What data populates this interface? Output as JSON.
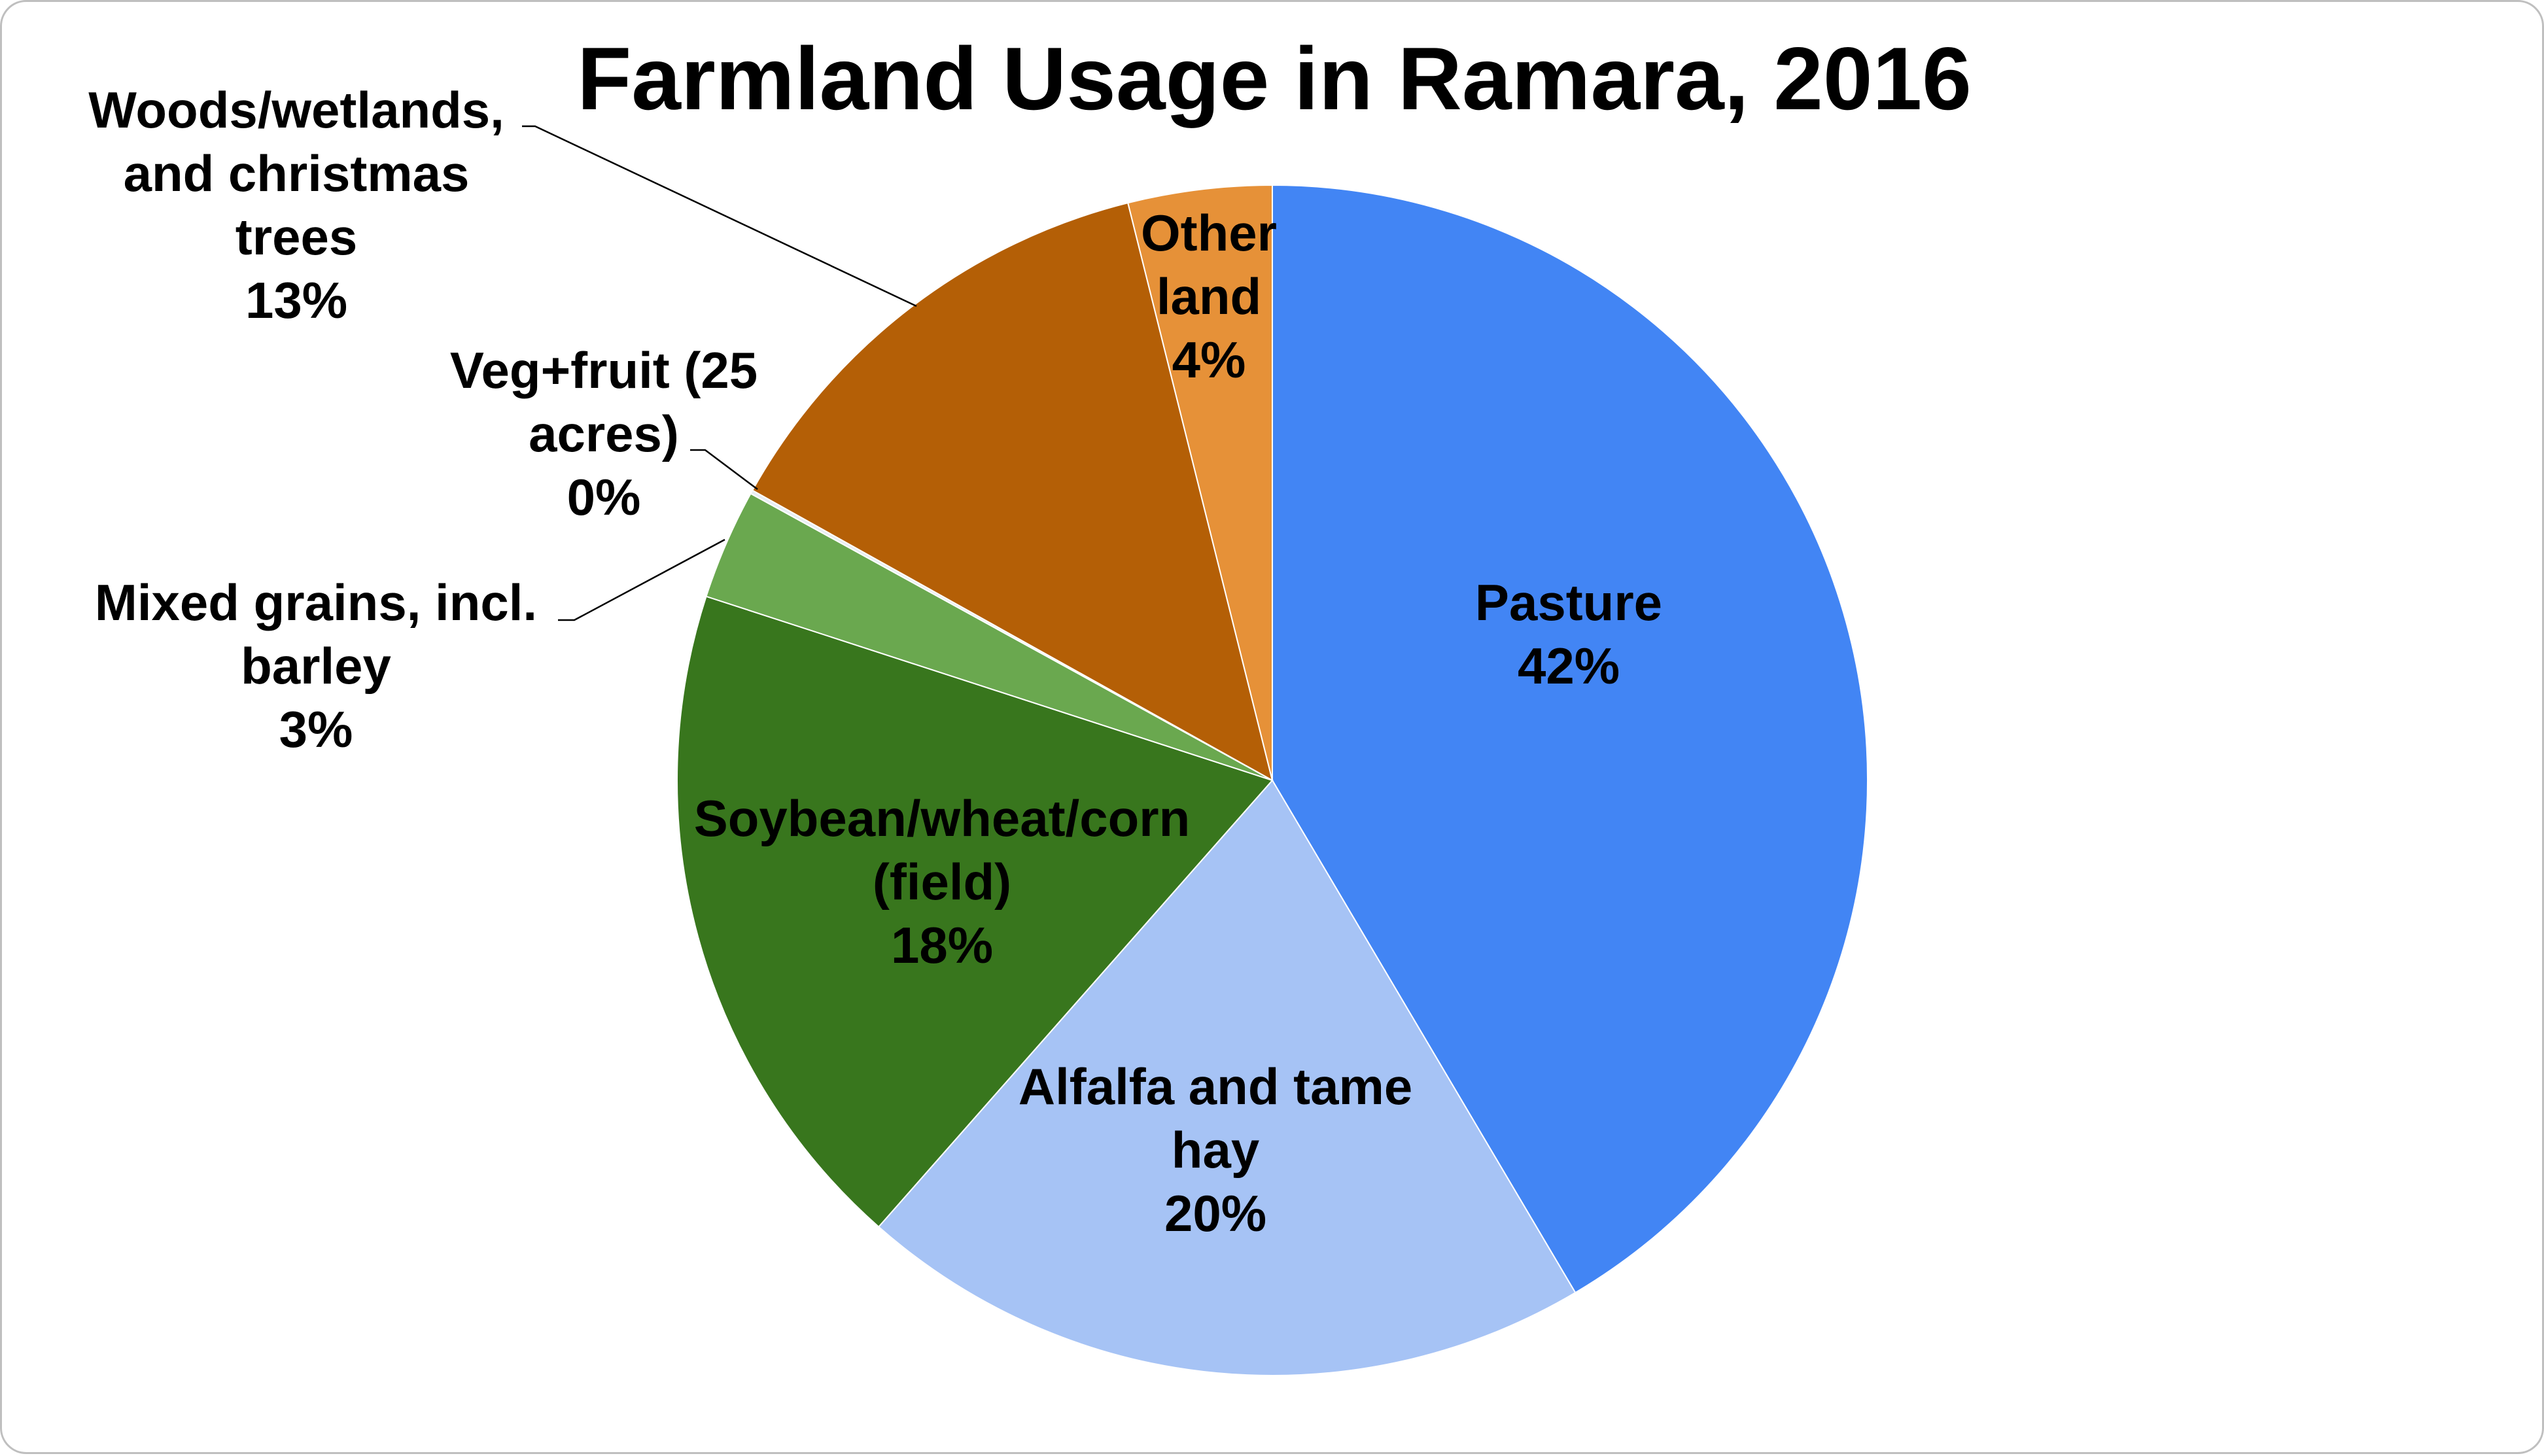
{
  "chart_data": {
    "type": "pie",
    "title": "Farmland Usage in Ramara, 2016",
    "slices": [
      {
        "label": [
          "Pasture"
        ],
        "percent": "42%",
        "value": 41.5,
        "color": "#4285f4"
      },
      {
        "label": [
          "Alfalfa and tame",
          "hay"
        ],
        "percent": "20%",
        "value": 20.0,
        "color": "#a6c3f5"
      },
      {
        "label": [
          "Soybean/wheat/corn",
          "(field)"
        ],
        "percent": "18%",
        "value": 18.5,
        "color": "#38761d"
      },
      {
        "label": [
          "Mixed grains, incl.",
          "barley"
        ],
        "percent": "3%",
        "value": 3.0,
        "color": "#6aa84f"
      },
      {
        "label": [
          "Veg+fruit (25",
          "acres)"
        ],
        "percent": "0%",
        "value": 0.1,
        "color": "#e8eef4"
      },
      {
        "label": [
          "Woods/wetlands,",
          "and christmas",
          "trees"
        ],
        "percent": "13%",
        "value": 13.0,
        "color": "#b45f06"
      },
      {
        "label": [
          "Other",
          "land"
        ],
        "percent": "4%",
        "value": 3.9,
        "color": "#e69138"
      }
    ],
    "legend": "none"
  }
}
